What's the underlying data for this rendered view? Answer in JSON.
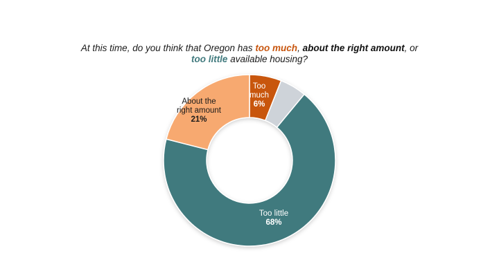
{
  "title": {
    "part1": "At this time, do you think that Oregon has ",
    "hl1": "too much",
    "part2": ", ",
    "hl2": "about the right amount",
    "part3": ", or ",
    "hl3": "too little",
    "part4": " available housing?"
  },
  "colors": {
    "too_much": "#c8560f",
    "about_right": "#f7a96f",
    "too_little": "#417a7e",
    "unlabeled": "#ced3d9",
    "title_text": "#1a1a1a",
    "about_right_title": "#111111"
  },
  "chart_data": {
    "type": "pie",
    "donut": true,
    "title": "At this time, do you think that Oregon has too much, about the right amount, or too little available housing?",
    "slices": [
      {
        "label_lines": [
          "Too",
          "much"
        ],
        "label": "Too much",
        "value": 6,
        "display": "6%",
        "color": "#c8560f"
      },
      {
        "label_lines": [],
        "label": "",
        "value": 5,
        "display": "",
        "color": "#ced3d9"
      },
      {
        "label_lines": [
          "Too little"
        ],
        "label": "Too little",
        "value": 68,
        "display": "68%",
        "color": "#417a7e"
      },
      {
        "label_lines": [
          "About the",
          "right amount"
        ],
        "label": "About the right amount",
        "value": 21,
        "display": "21%",
        "color": "#f7a96f"
      }
    ],
    "start_angle_deg": 0,
    "legend": "none"
  }
}
